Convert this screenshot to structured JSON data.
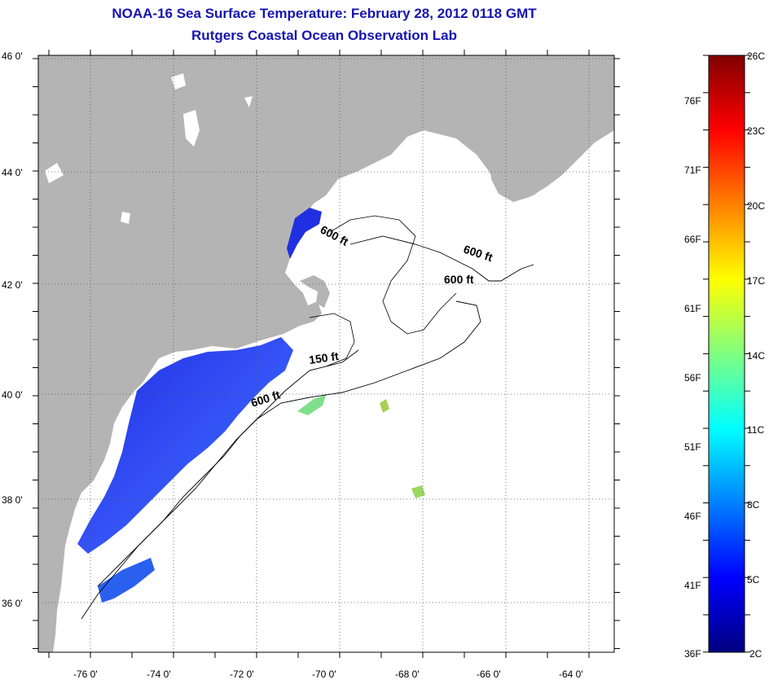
{
  "title": "NOAA-16 Sea Surface Temperature:  February 28, 2012 0118 GMT",
  "subtitle": "Rutgers Coastal Ocean Observation Lab",
  "map": {
    "lon_range": [
      -77,
      -63
    ],
    "lat_range": [
      35,
      46
    ],
    "lat_labels": [
      "46 0'",
      "44 0'",
      "42 0'",
      "40 0'",
      "38 0'",
      "36 0'"
    ],
    "lon_labels": [
      "-76 0'",
      "-74 0'",
      "-72 0'",
      "-70 0'",
      "-68 0'",
      "-66 0'",
      "-64 0'"
    ],
    "land_color": "#b4b4b4",
    "ocean_color": "#ffffff",
    "contours": [
      {
        "label": "600 ft"
      },
      {
        "label": "600 ft"
      },
      {
        "label": "600 ft"
      },
      {
        "label": "150 ft"
      },
      {
        "label": "600 ft"
      }
    ]
  },
  "colorbar": {
    "fahrenheit_labels": [
      "76F",
      "71F",
      "66F",
      "61F",
      "56F",
      "51F",
      "46F",
      "41F",
      "36F"
    ],
    "celsius_labels": [
      "26C",
      "23C",
      "20C",
      "17C",
      "14C",
      "11C",
      "8C",
      "5C",
      "2C"
    ],
    "stops": [
      "#000080",
      "#0000ff",
      "#0080ff",
      "#00ffff",
      "#80ff80",
      "#ffff00",
      "#ff8000",
      "#ff0000",
      "#800000"
    ]
  }
}
